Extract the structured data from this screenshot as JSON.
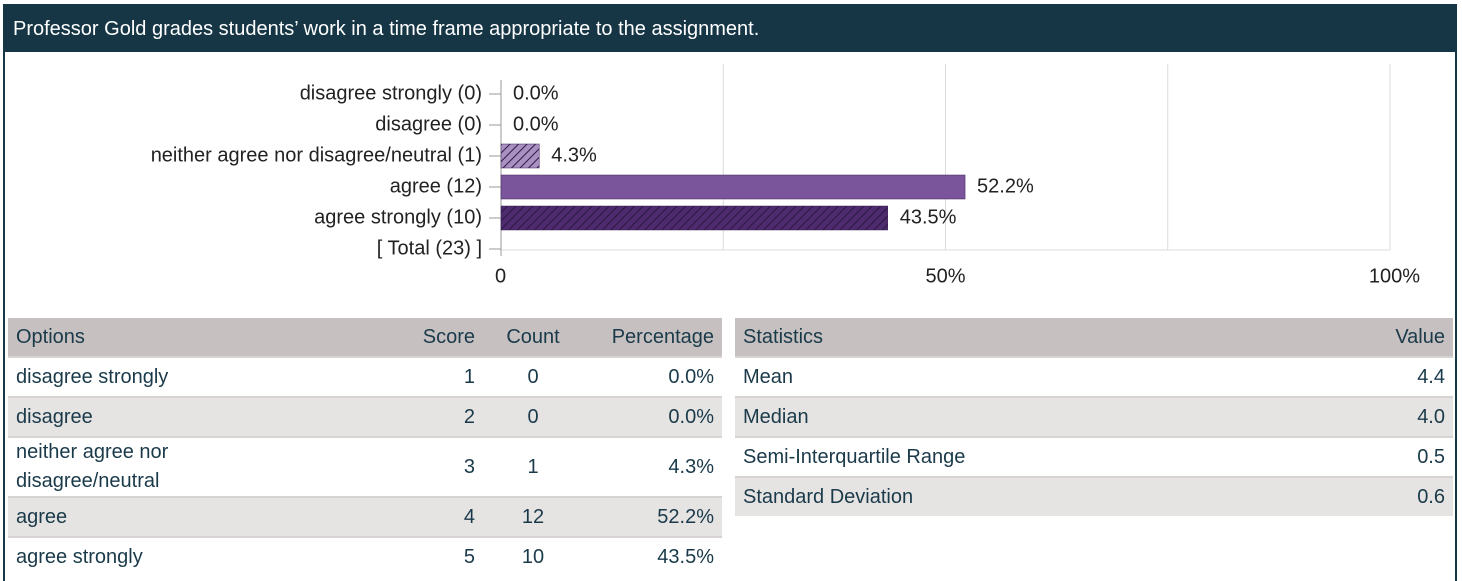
{
  "header": {
    "title": "Professor Gold grades students’ work in a time frame appropriate to the assignment."
  },
  "chart_data": {
    "type": "bar",
    "orientation": "horizontal",
    "categories": [
      "disagree strongly (0)",
      "disagree (0)",
      "neither agree nor disagree/neutral (1)",
      "agree (12)",
      "agree strongly (10)",
      "[ Total (23) ]"
    ],
    "values": [
      0,
      0,
      4.3,
      52.2,
      43.5,
      null
    ],
    "value_labels": [
      "0.0%",
      "0.0%",
      "4.3%",
      "52.2%",
      "43.5%",
      null
    ],
    "colors": [
      "#b39fc9",
      "#7b559c",
      "#a890c2",
      "#7b559c",
      "#4e2b6e",
      null
    ],
    "hatched": [
      true,
      false,
      true,
      false,
      true,
      null
    ],
    "xlim": [
      0,
      100
    ],
    "xticks": [
      0,
      {
        "value": 50,
        "label": "50%"
      },
      {
        "value": 100,
        "label": "100%"
      }
    ],
    "xgrid": [
      25,
      50,
      75,
      100
    ],
    "grid": true
  },
  "options_table": {
    "headers": [
      "Options",
      "Score",
      "Count",
      "Percentage"
    ],
    "rows": [
      [
        "disagree strongly",
        "1",
        "0",
        "0.0%"
      ],
      [
        "disagree",
        "2",
        "0",
        "0.0%"
      ],
      [
        "neither agree nor disagree/neutral",
        "3",
        "1",
        "4.3%"
      ],
      [
        "agree",
        "4",
        "12",
        "52.2%"
      ],
      [
        "agree strongly",
        "5",
        "10",
        "43.5%"
      ]
    ]
  },
  "stats_table": {
    "headers": [
      "Statistics",
      "Value"
    ],
    "rows": [
      [
        "Mean",
        "4.4"
      ],
      [
        "Median",
        "4.0"
      ],
      [
        "Semi-Interquartile Range",
        "0.5"
      ],
      [
        "Standard Deviation",
        "0.6"
      ]
    ]
  }
}
